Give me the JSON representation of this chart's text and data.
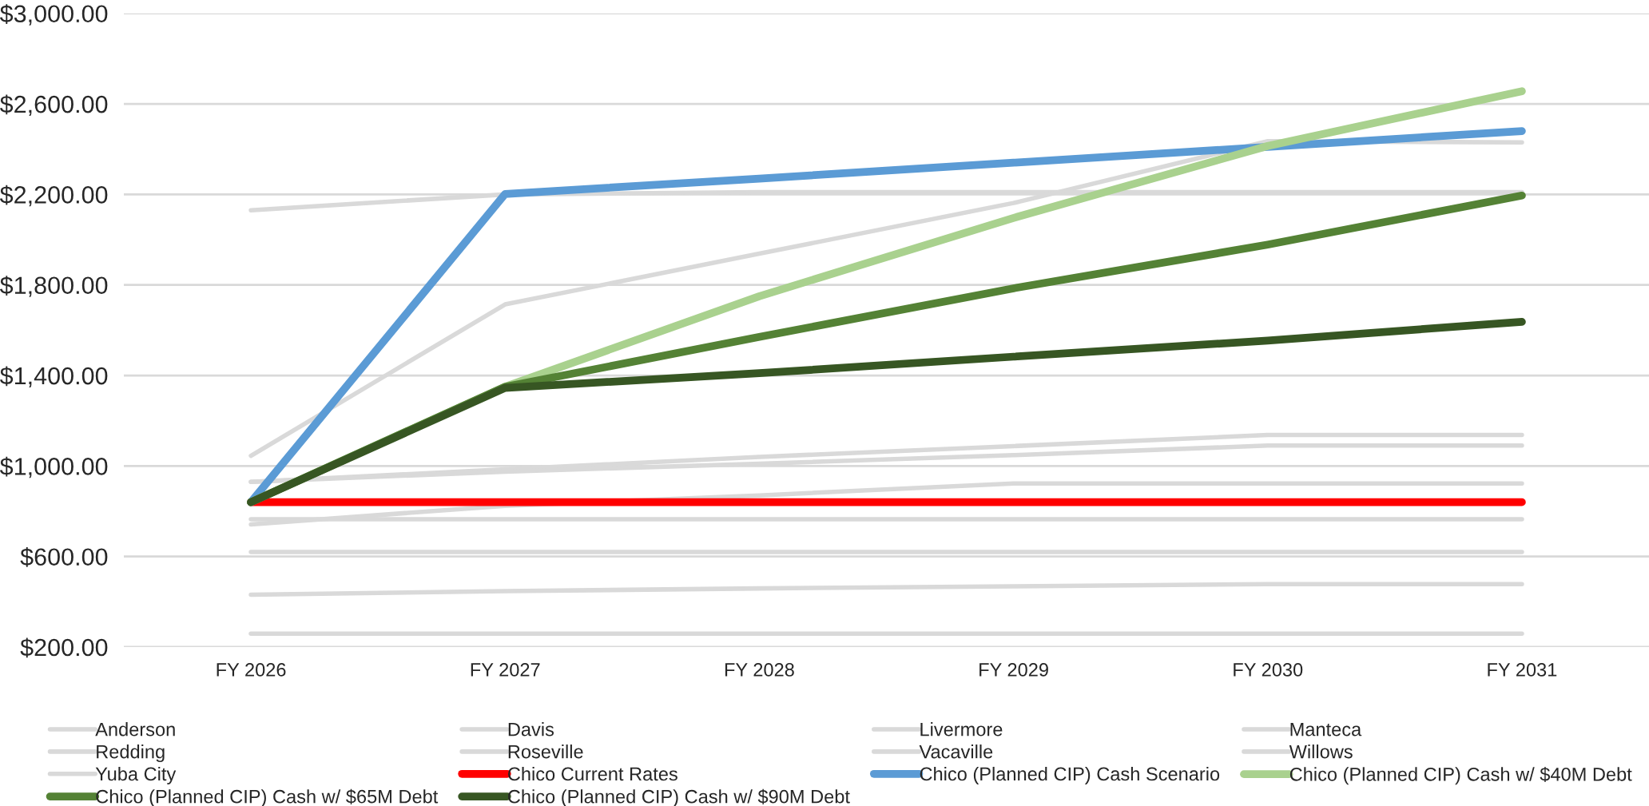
{
  "chart_data": {
    "type": "line",
    "categories": [
      "FY 2026",
      "FY 2027",
      "FY 2028",
      "FY 2029",
      "FY 2030",
      "FY 2031"
    ],
    "series": [
      {
        "name": "Anderson",
        "color": "#d9d9d9",
        "values": [
          2130,
          2200,
          2210,
          2210,
          2210,
          2210
        ]
      },
      {
        "name": "Davis",
        "color": "#d9d9d9",
        "values": [
          1045,
          1714,
          1938,
          2162,
          2435,
          2430
        ]
      },
      {
        "name": "Livermore",
        "color": "#d9d9d9",
        "values": [
          930,
          985,
          1040,
          1088,
          1137,
          1137
        ]
      },
      {
        "name": "Manteca",
        "color": "#d9d9d9",
        "values": [
          930,
          975,
          1010,
          1048,
          1090,
          1090
        ]
      },
      {
        "name": "Redding",
        "color": "#d9d9d9",
        "values": [
          742,
          824,
          870,
          923,
          923,
          923
        ]
      },
      {
        "name": "Roseville",
        "color": "#d9d9d9",
        "values": [
          765,
          765,
          765,
          765,
          765,
          765
        ]
      },
      {
        "name": "Vacaville",
        "color": "#d9d9d9",
        "values": [
          620,
          620,
          620,
          620,
          620,
          620
        ]
      },
      {
        "name": "Willows",
        "color": "#d9d9d9",
        "values": [
          431,
          447,
          459,
          468,
          478,
          478
        ]
      },
      {
        "name": "Yuba City",
        "color": "#d9d9d9",
        "values": [
          259,
          259,
          259,
          259,
          259,
          259
        ]
      },
      {
        "name": "Chico Current Rates",
        "color": "#ff0000",
        "values": [
          840,
          840,
          840,
          840,
          840,
          840
        ]
      },
      {
        "name": "Chico (Planned CIP) Cash Scenario",
        "color": "#5b9bd5",
        "values": [
          840,
          2202,
          2270,
          2340,
          2410,
          2480
        ]
      },
      {
        "name": "Chico (Planned CIP) Cash w/ $40M Debt",
        "color": "#a9d18e",
        "values": [
          840,
          1350,
          1750,
          2096,
          2414,
          2656
        ]
      },
      {
        "name": "Chico (Planned CIP) Cash w/ $65M Debt",
        "color": "#548235",
        "values": [
          840,
          1350,
          1570,
          1785,
          1978,
          2195
        ]
      },
      {
        "name": "Chico (Planned CIP) Cash w/ $90M Debt",
        "color": "#375623",
        "values": [
          840,
          1345,
          1410,
          1483,
          1554,
          1637
        ]
      }
    ],
    "ylim": [
      200,
      3000
    ],
    "yticks": [
      {
        "value": 200,
        "label": "$200.00"
      },
      {
        "value": 600,
        "label": "$600.00"
      },
      {
        "value": 1000,
        "label": "$1,000.00"
      },
      {
        "value": 1400,
        "label": "$1,400.00"
      },
      {
        "value": 1800,
        "label": "$1,800.00"
      },
      {
        "value": 2200,
        "label": "$2,200.00"
      },
      {
        "value": 2600,
        "label": "$2,600.00"
      },
      {
        "value": 3000,
        "label": "$3,000.00"
      }
    ],
    "grid": "y",
    "legend": "bottom",
    "marker": "none",
    "line_style": "solid"
  }
}
